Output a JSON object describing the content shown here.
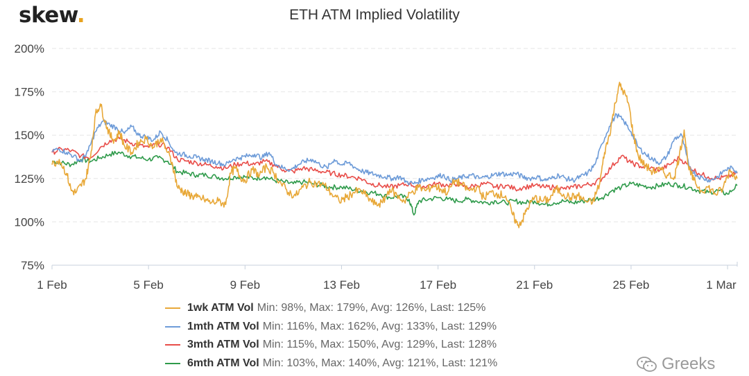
{
  "logo": {
    "text": "skew",
    "dot": "."
  },
  "title": "ETH ATM Implied Volatility",
  "watermark": "Greeks",
  "chart_data": {
    "type": "line",
    "title": "ETH ATM Implied Volatility",
    "xlabel": "",
    "ylabel": "",
    "x_ticks": [
      "1 Feb",
      "5 Feb",
      "9 Feb",
      "13 Feb",
      "17 Feb",
      "21 Feb",
      "25 Feb",
      "1 Mar"
    ],
    "x_range_days": [
      0,
      28.4
    ],
    "y_ticks": [
      "75%",
      "100%",
      "125%",
      "150%",
      "175%",
      "200%"
    ],
    "y_tick_values": [
      75,
      100,
      125,
      150,
      175,
      200
    ],
    "ylim": [
      75,
      200
    ],
    "grid": true,
    "legend_position": "bottom",
    "series": [
      {
        "name": "1wk ATM Vol",
        "color": "#e8a838",
        "stats": "Min: 98%, Max: 179%, Avg: 126%, Last: 125%",
        "x": [
          0,
          0.3,
          0.6,
          0.8,
          1.0,
          1.2,
          1.4,
          1.6,
          1.8,
          2.0,
          2.2,
          2.4,
          2.6,
          2.8,
          3.0,
          3.3,
          3.6,
          3.9,
          4.2,
          4.5,
          4.8,
          5.0,
          5.2,
          5.4,
          5.6,
          5.8,
          6.0,
          6.3,
          6.6,
          6.9,
          7.2,
          7.4,
          7.6,
          7.8,
          8.0,
          8.3,
          8.6,
          8.9,
          9.2,
          9.5,
          9.8,
          10.1,
          10.4,
          10.7,
          11.0,
          11.3,
          11.6,
          11.9,
          12.2,
          12.5,
          12.8,
          13.1,
          13.4,
          13.7,
          14.0,
          14.3,
          14.6,
          14.9,
          15.2,
          15.5,
          15.8,
          16.1,
          16.4,
          16.7,
          17.0,
          17.3,
          17.6,
          17.9,
          18.2,
          18.5,
          18.8,
          19.1,
          19.3,
          19.5,
          19.7,
          20.0,
          20.3,
          20.6,
          20.9,
          21.2,
          21.5,
          21.8,
          22.1,
          22.4,
          22.7,
          22.9,
          23.1,
          23.3,
          23.5,
          23.7,
          23.9,
          24.1,
          24.3,
          24.6,
          24.9,
          25.2,
          25.5,
          25.8,
          26.0,
          26.2,
          26.4,
          26.6,
          26.9,
          27.2,
          27.5,
          27.8,
          28.1,
          28.4
        ],
        "y": [
          133,
          136,
          128,
          118,
          117,
          121,
          125,
          138,
          162,
          168,
          158,
          150,
          147,
          152,
          144,
          140,
          146,
          148,
          143,
          148,
          140,
          133,
          120,
          118,
          116,
          115,
          114,
          113,
          111,
          112,
          110,
          128,
          131,
          126,
          124,
          130,
          127,
          132,
          128,
          122,
          117,
          115,
          120,
          123,
          122,
          121,
          116,
          112,
          114,
          117,
          118,
          114,
          110,
          111,
          119,
          115,
          112,
          117,
          120,
          118,
          121,
          119,
          117,
          124,
          121,
          118,
          120,
          114,
          117,
          116,
          115,
          104,
          98,
          101,
          108,
          114,
          112,
          113,
          119,
          116,
          114,
          115,
          112,
          111,
          122,
          140,
          150,
          165,
          179,
          175,
          168,
          150,
          138,
          132,
          129,
          130,
          127,
          126,
          138,
          153,
          130,
          124,
          118,
          120,
          116,
          119,
          130,
          125
        ]
      },
      {
        "name": "1mth ATM Vol",
        "color": "#6d9bd8",
        "stats": "Min: 116%, Max: 162%, Avg: 133%, Last: 129%",
        "x": [
          0,
          0.3,
          0.6,
          0.9,
          1.2,
          1.5,
          1.8,
          2.1,
          2.4,
          2.7,
          3.0,
          3.3,
          3.6,
          3.9,
          4.2,
          4.5,
          4.8,
          5.1,
          5.4,
          5.7,
          6.0,
          6.3,
          6.6,
          6.9,
          7.2,
          7.5,
          7.8,
          8.1,
          8.4,
          8.7,
          9.0,
          9.3,
          9.6,
          9.9,
          10.2,
          10.5,
          10.8,
          11.1,
          11.4,
          11.7,
          12.0,
          12.3,
          12.6,
          12.9,
          13.2,
          13.5,
          13.8,
          14.1,
          14.4,
          14.7,
          15.0,
          15.3,
          15.6,
          15.9,
          16.2,
          16.5,
          16.8,
          17.1,
          17.4,
          17.7,
          18.0,
          18.3,
          18.6,
          18.9,
          19.2,
          19.5,
          19.8,
          20.1,
          20.4,
          20.7,
          21.0,
          21.3,
          21.6,
          21.9,
          22.2,
          22.5,
          22.8,
          23.1,
          23.4,
          23.7,
          24.0,
          24.3,
          24.6,
          24.9,
          25.2,
          25.5,
          25.8,
          26.1,
          26.4,
          26.7,
          27.0,
          27.3,
          27.6,
          27.9,
          28.2,
          28.4
        ],
        "y": [
          141,
          142,
          140,
          138,
          135,
          141,
          152,
          158,
          156,
          154,
          151,
          155,
          150,
          149,
          147,
          152,
          147,
          140,
          139,
          138,
          137,
          136,
          135,
          134,
          133,
          136,
          137,
          138,
          139,
          137,
          140,
          133,
          131,
          130,
          133,
          135,
          136,
          133,
          131,
          136,
          133,
          134,
          131,
          129,
          128,
          127,
          126,
          125,
          126,
          123,
          122,
          124,
          125,
          126,
          127,
          124,
          125,
          126,
          127,
          125,
          126,
          127,
          128,
          127,
          128,
          126,
          125,
          126,
          124,
          125,
          127,
          125,
          124,
          126,
          128,
          133,
          145,
          155,
          162,
          158,
          152,
          143,
          139,
          136,
          134,
          138,
          148,
          150,
          132,
          127,
          125,
          124,
          126,
          130,
          131,
          129
        ]
      },
      {
        "name": "3mth ATM Vol",
        "color": "#e84c48",
        "stats": "Min: 115%, Max: 150%, Avg: 129%, Last: 128%",
        "x": [
          0,
          0.4,
          0.8,
          1.2,
          1.6,
          2.0,
          2.4,
          2.8,
          3.2,
          3.6,
          4.0,
          4.4,
          4.8,
          5.2,
          5.6,
          6.0,
          6.4,
          6.8,
          7.2,
          7.6,
          8.0,
          8.4,
          8.8,
          9.2,
          9.6,
          10.0,
          10.4,
          10.8,
          11.2,
          11.6,
          12.0,
          12.4,
          12.8,
          13.2,
          13.6,
          14.0,
          14.4,
          14.8,
          15.2,
          15.6,
          16.0,
          16.4,
          16.8,
          17.2,
          17.6,
          18.0,
          18.4,
          18.8,
          19.2,
          19.6,
          20.0,
          20.4,
          20.8,
          21.2,
          21.6,
          22.0,
          22.4,
          22.8,
          23.2,
          23.6,
          24.0,
          24.4,
          24.8,
          25.2,
          25.6,
          26.0,
          26.4,
          26.8,
          27.2,
          27.6,
          28.0,
          28.4
        ],
        "y": [
          140,
          142,
          141,
          138,
          137,
          143,
          147,
          148,
          146,
          144,
          143,
          145,
          143,
          136,
          135,
          134,
          133,
          132,
          131,
          133,
          134,
          133,
          135,
          133,
          130,
          129,
          131,
          130,
          129,
          128,
          127,
          126,
          125,
          122,
          121,
          120,
          121,
          122,
          120,
          121,
          122,
          121,
          122,
          120,
          121,
          122,
          120,
          121,
          119,
          120,
          121,
          120,
          120,
          119,
          120,
          121,
          122,
          125,
          132,
          138,
          134,
          132,
          131,
          130,
          133,
          137,
          132,
          128,
          126,
          125,
          126,
          128
        ]
      },
      {
        "name": "6mth ATM Vol",
        "color": "#2e9a4a",
        "stats": "Min: 103%, Max: 140%, Avg: 121%, Last: 121%",
        "x": [
          0,
          0.4,
          0.8,
          1.2,
          1.6,
          2.0,
          2.4,
          2.8,
          3.2,
          3.6,
          4.0,
          4.4,
          4.8,
          5.2,
          5.6,
          6.0,
          6.4,
          6.8,
          7.2,
          7.6,
          8.0,
          8.4,
          8.8,
          9.2,
          9.6,
          10.0,
          10.4,
          10.8,
          11.2,
          11.6,
          12.0,
          12.4,
          12.8,
          13.2,
          13.6,
          14.0,
          14.4,
          14.8,
          15.0,
          15.2,
          15.6,
          16.0,
          16.4,
          16.8,
          17.2,
          17.6,
          18.0,
          18.4,
          18.8,
          19.2,
          19.6,
          20.0,
          20.4,
          20.8,
          21.2,
          21.6,
          22.0,
          22.4,
          22.8,
          23.2,
          23.6,
          24.0,
          24.4,
          24.8,
          25.2,
          25.6,
          26.0,
          26.4,
          26.8,
          27.2,
          27.6,
          28.0,
          28.4
        ],
        "y": [
          135,
          134,
          133,
          136,
          135,
          137,
          139,
          140,
          138,
          137,
          136,
          137,
          135,
          129,
          128,
          127,
          127,
          126,
          125,
          126,
          126,
          125,
          126,
          124,
          123,
          122,
          123,
          122,
          121,
          120,
          120,
          119,
          118,
          117,
          116,
          114,
          115,
          113,
          104,
          112,
          113,
          114,
          113,
          112,
          113,
          112,
          111,
          112,
          111,
          112,
          111,
          112,
          110,
          111,
          112,
          111,
          112,
          113,
          114,
          118,
          120,
          122,
          121,
          120,
          121,
          122,
          121,
          120,
          118,
          117,
          118,
          116,
          121
        ]
      }
    ]
  }
}
